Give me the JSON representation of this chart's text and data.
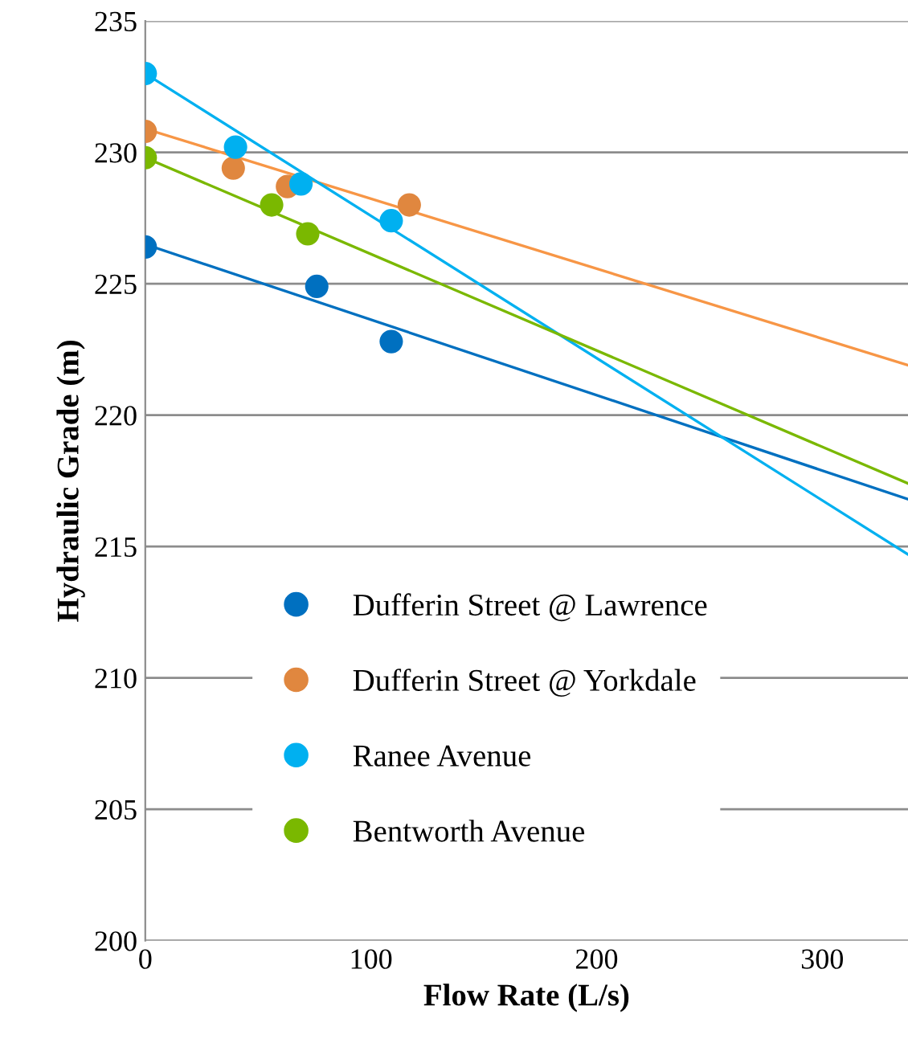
{
  "chart_data": {
    "type": "scatter",
    "xlabel": "Flow Rate (L/s)",
    "ylabel": "Hydraulic Grade (m)",
    "xlim": [
      0,
      338
    ],
    "ylim": [
      200,
      235
    ],
    "xticks": [
      0,
      100,
      200,
      300
    ],
    "yticks": [
      200,
      205,
      210,
      215,
      220,
      225,
      230,
      235
    ],
    "grid": "y",
    "legend": "bottom left",
    "marker": "circle",
    "series": [
      {
        "name": "Dufferin Street @ Lawrence",
        "color": "#0070c0",
        "x": [
          0,
          76,
          109
        ],
        "values": [
          226.4,
          224.9,
          222.8
        ]
      },
      {
        "name": "Dufferin Street @ Yorkdale",
        "color": "#e0873f",
        "x": [
          0,
          39,
          63,
          117
        ],
        "values": [
          230.8,
          229.4,
          228.7,
          228.0
        ]
      },
      {
        "name": "Ranee Avenue",
        "color": "#00b0f0",
        "x": [
          0,
          40,
          69,
          109
        ],
        "values": [
          233.0,
          230.2,
          228.8,
          227.4
        ]
      },
      {
        "name": "Bentworth Avenue",
        "color": "#7ab800",
        "x": [
          0,
          56,
          72
        ],
        "values": [
          229.8,
          228.0,
          226.9
        ]
      },
      {
        "type": "line",
        "marker": "none",
        "color": "#0070c0",
        "x": [
          0,
          338
        ],
        "values": [
          226.5,
          216.8
        ]
      },
      {
        "type": "line",
        "marker": "none",
        "color": "#f79646",
        "x": [
          0,
          338
        ],
        "values": [
          230.9,
          221.9
        ]
      },
      {
        "type": "line",
        "marker": "none",
        "color": "#00b0f0",
        "x": [
          0,
          338
        ],
        "values": [
          233.0,
          214.7
        ]
      },
      {
        "type": "line",
        "marker": "none",
        "color": "#7ab800",
        "x": [
          0,
          338
        ],
        "values": [
          229.8,
          217.4
        ]
      }
    ]
  }
}
